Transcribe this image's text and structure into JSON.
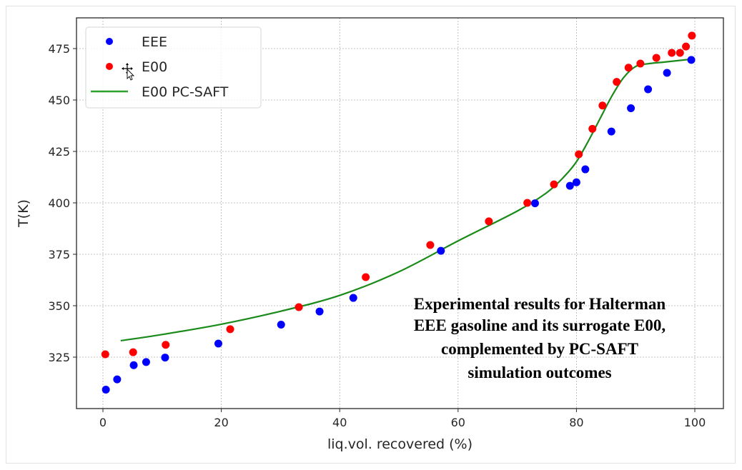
{
  "chart_data": {
    "type": "scatter",
    "title": "",
    "xlabel": "liq.vol. recovered (%)",
    "ylabel": "T(K)",
    "xlim": [
      -5,
      105
    ],
    "ylim": [
      304,
      486
    ],
    "xticks": [
      0,
      20,
      40,
      60,
      80,
      100
    ],
    "xtick_labels": [
      "0",
      "20",
      "40",
      "60",
      "80",
      "100"
    ],
    "yticks": [
      325,
      350,
      375,
      400,
      425,
      450,
      475
    ],
    "ytick_labels": [
      "325",
      "350",
      "375",
      "400",
      "425",
      "450",
      "475"
    ],
    "grid": true,
    "legend_position": "top-left",
    "series": [
      {
        "name": "EEE",
        "kind": "markers",
        "color": "#0000ff",
        "points": [
          [
            0.5,
            309.2
          ],
          [
            2.4,
            314.2
          ],
          [
            5.2,
            321.1
          ],
          [
            7.3,
            322.6
          ],
          [
            10.5,
            324.8
          ],
          [
            19.5,
            331.6
          ],
          [
            30.1,
            340.8
          ],
          [
            36.6,
            347.2
          ],
          [
            42.3,
            353.8
          ],
          [
            57.1,
            376.7
          ],
          [
            73.0,
            399.8
          ],
          [
            78.9,
            408.3
          ],
          [
            80.0,
            410.0
          ],
          [
            81.5,
            416.3
          ],
          [
            85.9,
            434.7
          ],
          [
            89.2,
            446.0
          ],
          [
            92.1,
            455.2
          ],
          [
            95.3,
            463.2
          ],
          [
            99.4,
            469.5
          ]
        ]
      },
      {
        "name": "E00",
        "kind": "markers",
        "color": "#ff0000",
        "points": [
          [
            0.4,
            326.4
          ],
          [
            5.1,
            327.4
          ],
          [
            10.6,
            331.0
          ],
          [
            21.5,
            338.6
          ],
          [
            33.1,
            349.3
          ],
          [
            44.4,
            363.9
          ],
          [
            55.3,
            379.5
          ],
          [
            65.2,
            391.0
          ],
          [
            71.7,
            400.0
          ],
          [
            76.2,
            409.0
          ],
          [
            80.4,
            423.6
          ],
          [
            82.7,
            436.0
          ],
          [
            84.4,
            447.3
          ],
          [
            86.8,
            458.8
          ],
          [
            88.8,
            465.7
          ],
          [
            90.8,
            467.7
          ],
          [
            93.5,
            470.5
          ],
          [
            96.1,
            472.9
          ],
          [
            97.5,
            472.9
          ],
          [
            98.5,
            476.0
          ],
          [
            99.5,
            481.3
          ]
        ]
      },
      {
        "name": "E00 PC-SAFT",
        "kind": "line",
        "color": "#1a8a1a",
        "points": [
          [
            3,
            333.0
          ],
          [
            10,
            336.0
          ],
          [
            20,
            341.0
          ],
          [
            30,
            347.3
          ],
          [
            40,
            355.0
          ],
          [
            50,
            366.5
          ],
          [
            60,
            381.5
          ],
          [
            70,
            396.0
          ],
          [
            75,
            405.0
          ],
          [
            78,
            413.0
          ],
          [
            80,
            420.0
          ],
          [
            82,
            430.0
          ],
          [
            84,
            441.0
          ],
          [
            86,
            452.0
          ],
          [
            88,
            461.0
          ],
          [
            90,
            466.3
          ],
          [
            92,
            467.6
          ],
          [
            95,
            468.5
          ],
          [
            100,
            470.0
          ]
        ]
      }
    ],
    "annotation": [
      "Experimental results for Halterman",
      "EEE gasoline and its surrogate E00,",
      "complemented by PC-SAFT",
      "simulation outcomes"
    ]
  }
}
